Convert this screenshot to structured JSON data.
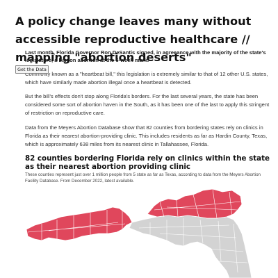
{
  "headline": "A policy change leaves many without accessible reproductive healthcare // mapping \"abortion deserts\"",
  "get_data_button": "Get the Data",
  "lede": "Last month, Florida Governor Ron DeSantis signed, in agreeance with the majority of the state's legislature, a ban on abortion at the 6-week mark.",
  "paragraphs": [
    "Commonly known as a \"heartbeat bill,\" this legislation is extremely similar to that of 12 other U.S. states, which have similarly made abortion illegal once a heartbeat is detected.",
    "But the bill's effects don't stop along Florida's borders. For the last several years, the state has been considered some sort of abortion haven in the South, as it has been one of the last to apply this stringent of restriction on reproductive care.",
    "Data from the Meyers Abortion Database show that 82 counties from bordering states rely on clinics in Florida as their nearest abortion-providing clinic. This includes residents as far as Hardin County, Texas, which is approximately 638 miles from its nearest clinic in Tallahassee, Florida."
  ],
  "map": {
    "title": "82 counties bordering Florida rely on clinics within the state as their nearest abortion providing clinic",
    "subtitle": "These counties represent just over 1 million people from 5 state as far as Texas, according to data from the Meyers Abortion Facility Database. From December 2022, latest available.",
    "colors": {
      "highlight": "#e0475c",
      "other": "#d3d3d3",
      "border": "#ffffff"
    }
  }
}
